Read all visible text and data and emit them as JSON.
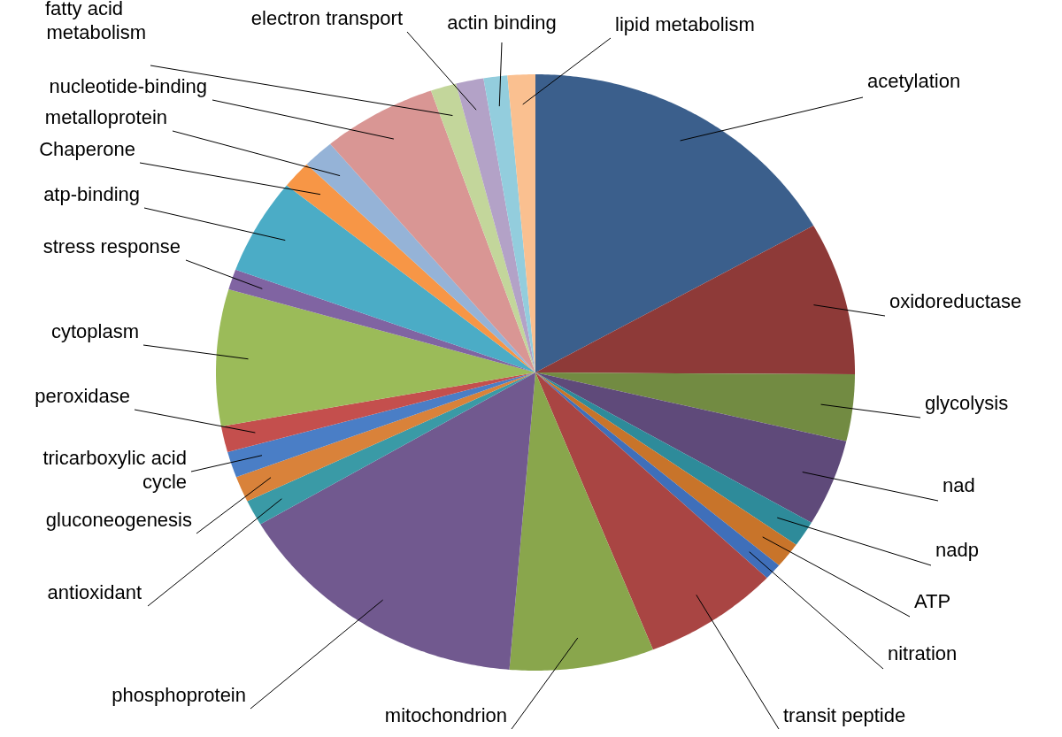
{
  "chart_data": {
    "type": "pie",
    "categories": [
      "acetylation",
      "oxidoreductase",
      "glycolysis",
      "nad",
      "nadp",
      "ATP",
      "nitration",
      "transit peptide",
      "mitochondrion",
      "phosphoprotein",
      "antioxidant",
      "gluconeogenesis",
      "tricarboxylic acid cycle",
      "peroxidase",
      "cytoplasm",
      "stress response",
      "atp-binding",
      "Chaperone",
      "metalloprotein",
      "nucleotide-binding",
      "fatty acid metabolism",
      "electron transport",
      "actin binding",
      "lipid metabolism"
    ],
    "values": [
      16.8,
      8.3,
      3.6,
      4.7,
      1.4,
      1.4,
      0.9,
      6.9,
      7.3,
      15.2,
      1.4,
      1.4,
      1.4,
      1.4,
      7.4,
      1.1,
      5.2,
      1.5,
      1.6,
      5.8,
      1.3,
      1.4,
      1.2,
      1.4
    ],
    "colors": [
      "#3b5f8c",
      "#8e3a38",
      "#728b42",
      "#5f4a7a",
      "#2e8b9a",
      "#c8742a",
      "#3f6fba",
      "#a94543",
      "#89a64c",
      "#71598f",
      "#3a9aa6",
      "#d9823a",
      "#4a7ec6",
      "#c44f4d",
      "#9bbb59",
      "#8064a2",
      "#4bacc6",
      "#f79646",
      "#95b3d7",
      "#d99694",
      "#c3d69b",
      "#b3a2c7",
      "#93cddd",
      "#fac090"
    ]
  }
}
